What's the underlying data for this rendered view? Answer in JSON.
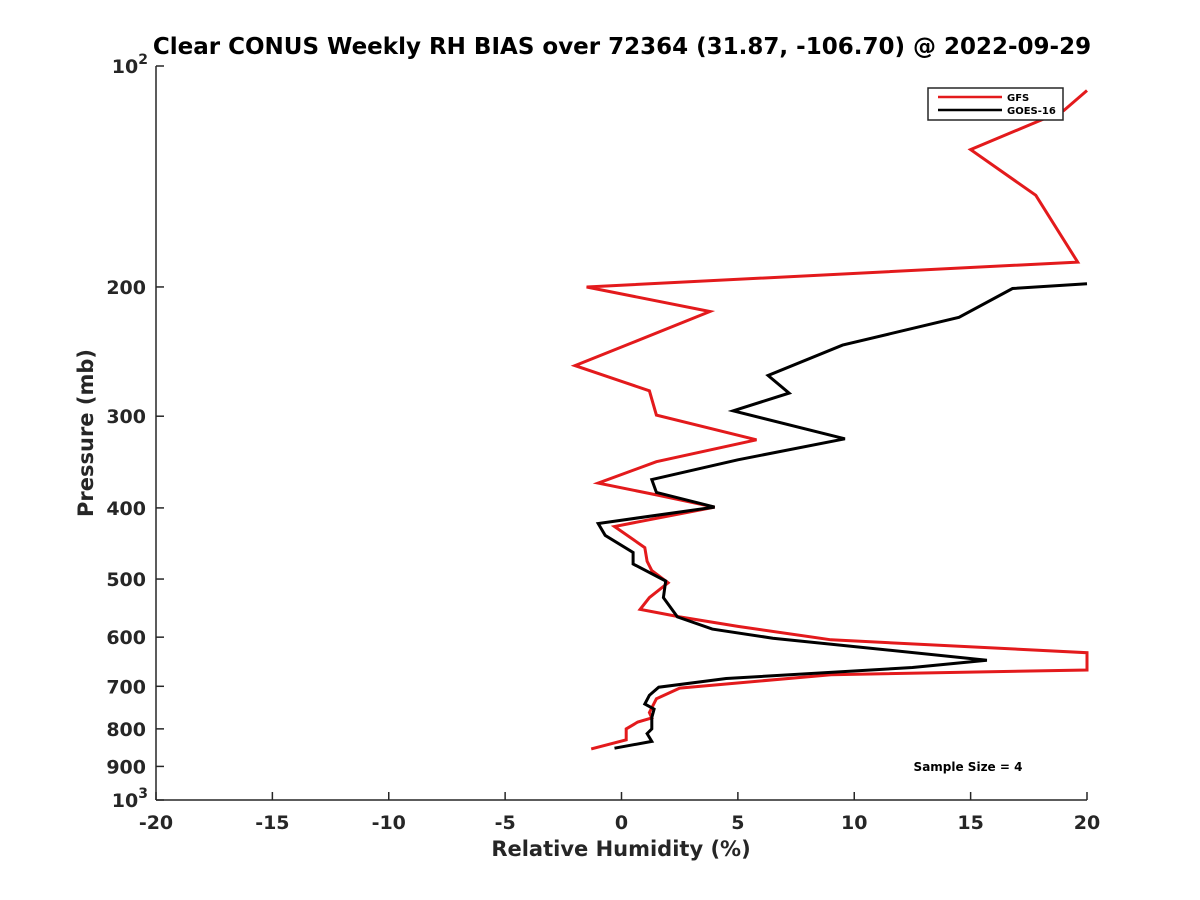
{
  "chart_data": {
    "type": "line",
    "title": "Clear CONUS Weekly RH BIAS over 72364 (31.87, -106.70) @ 2022-09-29",
    "xlabel": "Relative Humidity (%)",
    "ylabel": "Pressure (mb)",
    "xlim": [
      -20,
      20
    ],
    "ylim": [
      100,
      1000
    ],
    "y_scale": "log",
    "y_reversed": true,
    "grid": false,
    "legend_position": "top-right",
    "xticks": [
      -20,
      -15,
      -10,
      -5,
      0,
      5,
      10,
      15,
      20
    ],
    "yticks": [
      {
        "value": 100,
        "base": "10",
        "exp": "2"
      },
      {
        "value": 200,
        "label": "200"
      },
      {
        "value": 300,
        "label": "300"
      },
      {
        "value": 400,
        "label": "400"
      },
      {
        "value": 500,
        "label": "500"
      },
      {
        "value": 600,
        "label": "600"
      },
      {
        "value": 700,
        "label": "700"
      },
      {
        "value": 800,
        "label": "800"
      },
      {
        "value": 900,
        "label": "900"
      },
      {
        "value": 1000,
        "base": "10",
        "exp": "3"
      }
    ],
    "series": [
      {
        "name": "GFS",
        "color": "#e31a1c",
        "points": [
          [
            20,
            108
          ],
          [
            19,
            115
          ],
          [
            15,
            130
          ],
          [
            17.8,
            150
          ],
          [
            19.6,
            185
          ],
          [
            -1.5,
            200
          ],
          [
            3.8,
            216
          ],
          [
            0.5,
            238
          ],
          [
            -2,
            256
          ],
          [
            1.2,
            277
          ],
          [
            1.5,
            299
          ],
          [
            5.8,
            323
          ],
          [
            1.5,
            346
          ],
          [
            -1,
            370
          ],
          [
            1.5,
            384
          ],
          [
            4,
            399
          ],
          [
            -0.3,
            424
          ],
          [
            1,
            453
          ],
          [
            1.1,
            473
          ],
          [
            1.3,
            487
          ],
          [
            2,
            506
          ],
          [
            1.2,
            530
          ],
          [
            0.8,
            550
          ],
          [
            2.5,
            563
          ],
          [
            5,
            580
          ],
          [
            9,
            605
          ],
          [
            20,
            630
          ],
          [
            20,
            665
          ],
          [
            9,
            675
          ],
          [
            2.5,
            704
          ],
          [
            1.5,
            728
          ],
          [
            1.2,
            760
          ],
          [
            1.3,
            773
          ],
          [
            0.7,
            783
          ],
          [
            0.2,
            800
          ],
          [
            0.2,
            828
          ],
          [
            -1.3,
            852
          ]
        ]
      },
      {
        "name": "GOES-16",
        "color": "#000000",
        "points": [
          [
            20,
            198
          ],
          [
            16.8,
            201
          ],
          [
            14.5,
            220
          ],
          [
            9.5,
            240
          ],
          [
            6.3,
            264
          ],
          [
            7.2,
            279
          ],
          [
            4.8,
            295
          ],
          [
            9.6,
            322
          ],
          [
            5,
            344
          ],
          [
            1.3,
            366
          ],
          [
            1.5,
            381
          ],
          [
            4,
            399
          ],
          [
            -1,
            420
          ],
          [
            -0.7,
            436
          ],
          [
            0.5,
            460
          ],
          [
            0.5,
            477
          ],
          [
            1.9,
            503
          ],
          [
            1.8,
            530
          ],
          [
            2.4,
            563
          ],
          [
            3.9,
            585
          ],
          [
            6.5,
            602
          ],
          [
            15.7,
            645
          ],
          [
            12.5,
            660
          ],
          [
            4.5,
            683
          ],
          [
            1.6,
            702
          ],
          [
            1.2,
            720
          ],
          [
            1,
            740
          ],
          [
            1.4,
            752
          ],
          [
            1.3,
            772
          ],
          [
            1.3,
            790
          ],
          [
            1.3,
            800
          ],
          [
            1.1,
            812
          ],
          [
            1.3,
            832
          ],
          [
            -0.3,
            850
          ]
        ]
      }
    ],
    "legend": [
      "GFS",
      "GOES-16"
    ],
    "annotation": "Sample Size = 4"
  }
}
